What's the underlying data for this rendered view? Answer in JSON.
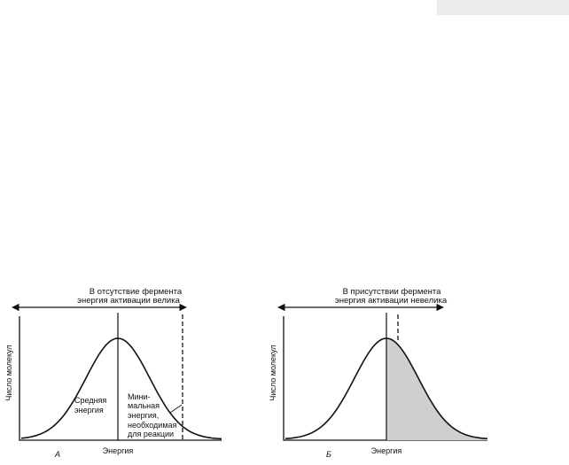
{
  "panels": [
    {
      "caption_lines": [
        "В отсутствие фермента",
        "энергия активации велика"
      ],
      "ylabel": "Число молекул",
      "xlabel": "Энергия",
      "label": "А",
      "mean_label_lines": [
        "Средняя",
        "энергия"
      ],
      "threshold_label_lines": [
        "Мини-",
        "мальная",
        "энергия,",
        "необходимая",
        "для реакции"
      ]
    },
    {
      "caption_lines": [
        "В присутствии фермента",
        "энергия активации невелика"
      ],
      "ylabel": "Число молекул",
      "xlabel": "Энергия",
      "label": "Б"
    }
  ],
  "colors": {
    "ink": "#111111",
    "shade": "#cfcfcf"
  }
}
